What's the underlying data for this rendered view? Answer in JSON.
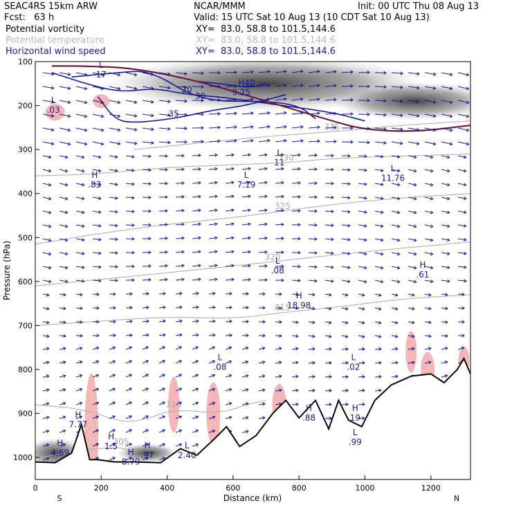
{
  "header": {
    "model": "SEAC4RS 15km ARW",
    "org": "NCAR/MMM",
    "init": "Init: 00 UTC Thu 08 Aug 13",
    "fcst": "Fcst:   63 h",
    "valid": "Valid: 15 UTC Sat 10 Aug 13 (10 CDT Sat 10 Aug 13)",
    "fields": [
      {
        "name": "Potential vorticity",
        "xy": "XY=  83.0, 58.8 to 101.5,144.6",
        "color": "#000000"
      },
      {
        "name": "Potential temperature",
        "xy": "XY=  83.0, 58.8 to 101.5,144.6",
        "color": "#b8b8b8"
      },
      {
        "name": "Horizontal wind speed",
        "xy": "XY=  83.0, 58.8 to 101.5,144.6",
        "color": "#1a1a8c"
      }
    ]
  },
  "chart_data": {
    "type": "cross-section",
    "title": "",
    "xlabel": "Distance (km)",
    "ylabel": "Pressure (hPa)",
    "xlim": [
      0,
      1320
    ],
    "ylim": [
      1050,
      100
    ],
    "x_ticks": [
      "0",
      "200",
      "400",
      "600",
      "800",
      "1000",
      "1200"
    ],
    "y_ticks": [
      "100",
      "200",
      "300",
      "400",
      "500",
      "600",
      "700",
      "800",
      "900",
      "1000"
    ],
    "endpoints": {
      "left": "S",
      "right": "N"
    },
    "colors": {
      "wind": "#1a1a8c",
      "theta": "#a8a8a8",
      "pv_line": "#6b1a3a",
      "pv_fill": "#f4b6b6",
      "terrain": "#000000"
    },
    "terrain": [
      [
        0,
        1010
      ],
      [
        60,
        1012
      ],
      [
        110,
        990
      ],
      [
        140,
        925
      ],
      [
        165,
        1005
      ],
      [
        190,
        1005
      ],
      [
        240,
        1010
      ],
      [
        300,
        1010
      ],
      [
        380,
        1012
      ],
      [
        440,
        980
      ],
      [
        490,
        995
      ],
      [
        540,
        960
      ],
      [
        580,
        930
      ],
      [
        620,
        975
      ],
      [
        670,
        950
      ],
      [
        720,
        900
      ],
      [
        760,
        870
      ],
      [
        800,
        910
      ],
      [
        850,
        870
      ],
      [
        890,
        935
      ],
      [
        920,
        870
      ],
      [
        950,
        915
      ],
      [
        990,
        930
      ],
      [
        1030,
        870
      ],
      [
        1080,
        835
      ],
      [
        1140,
        815
      ],
      [
        1200,
        810
      ],
      [
        1240,
        830
      ],
      [
        1280,
        800
      ],
      [
        1300,
        775
      ],
      [
        1320,
        810
      ]
    ],
    "theta_contours": [
      {
        "label": "305",
        "points": [
          [
            20,
            1000
          ],
          [
            120,
            985
          ],
          [
            260,
            975
          ],
          [
            300,
            990
          ]
        ]
      },
      {
        "label": "310",
        "points": [
          [
            0,
            880
          ],
          [
            150,
            890
          ],
          [
            260,
            920
          ],
          [
            330,
            915
          ],
          [
            420,
            890
          ],
          [
            560,
            900
          ],
          [
            640,
            880
          ],
          [
            700,
            870
          ]
        ]
      },
      {
        "label": "315",
        "points": [
          [
            0,
            700
          ],
          [
            200,
            690
          ],
          [
            400,
            680
          ],
          [
            600,
            685
          ],
          [
            750,
            670
          ],
          [
            900,
            660
          ],
          [
            1100,
            640
          ],
          [
            1320,
            630
          ]
        ]
      },
      {
        "label": "320",
        "points": [
          [
            0,
            610
          ],
          [
            200,
            595
          ],
          [
            400,
            580
          ],
          [
            600,
            565
          ],
          [
            720,
            555
          ],
          [
            900,
            540
          ],
          [
            1100,
            525
          ],
          [
            1320,
            510
          ]
        ]
      },
      {
        "label": "325",
        "points": [
          [
            0,
            515
          ],
          [
            200,
            490
          ],
          [
            400,
            470
          ],
          [
            600,
            455
          ],
          [
            750,
            440
          ],
          [
            900,
            425
          ],
          [
            1100,
            410
          ],
          [
            1320,
            400
          ]
        ]
      },
      {
        "label": "330",
        "points": [
          [
            0,
            360
          ],
          [
            200,
            355
          ],
          [
            400,
            340
          ],
          [
            600,
            335
          ],
          [
            760,
            330
          ],
          [
            900,
            320
          ],
          [
            1100,
            315
          ],
          [
            1320,
            310
          ]
        ]
      },
      {
        "label": "335",
        "points": [
          [
            300,
            300
          ],
          [
            500,
            285
          ],
          [
            700,
            270
          ],
          [
            900,
            260
          ],
          [
            1100,
            245
          ],
          [
            1320,
            235
          ]
        ]
      }
    ],
    "wind_speed_contours": [
      {
        "label": "20",
        "points": [
          [
            50,
            125
          ],
          [
            150,
            150
          ],
          [
            260,
            170
          ],
          [
            360,
            160
          ],
          [
            460,
            175
          ],
          [
            560,
            180
          ],
          [
            700,
            195
          ],
          [
            900,
            215
          ],
          [
            1000,
            235
          ]
        ]
      },
      {
        "label": "30",
        "points": [
          [
            110,
            135
          ],
          [
            250,
            125
          ],
          [
            350,
            120
          ],
          [
            500,
            190
          ],
          [
            700,
            190
          ],
          [
            800,
            200
          ],
          [
            850,
            230
          ]
        ]
      },
      {
        "label": "35",
        "points": [
          [
            190,
            180
          ],
          [
            240,
            230
          ],
          [
            290,
            240
          ],
          [
            420,
            230
          ],
          [
            540,
            210
          ],
          [
            640,
            200
          ],
          [
            760,
            175
          ]
        ]
      },
      {
        "label": "40",
        "points": [
          [
            490,
            145
          ],
          [
            560,
            150
          ],
          [
            650,
            160
          ],
          [
            700,
            150
          ]
        ]
      }
    ],
    "pv_contour": [
      [
        50,
        110
      ],
      [
        150,
        110
      ],
      [
        300,
        115
      ],
      [
        500,
        145
      ],
      [
        700,
        190
      ],
      [
        900,
        235
      ],
      [
        1000,
        255
      ],
      [
        1150,
        260
      ],
      [
        1320,
        245
      ]
    ],
    "extrema": [
      {
        "type": "L",
        "value": "17",
        "x": 200,
        "y": 125
      },
      {
        "type": "L",
        "value": ".03",
        "x": 55,
        "y": 205
      },
      {
        "type": "H",
        "value": "9.25",
        "x": 625,
        "y": 165
      },
      {
        "type": "H",
        "value": ".83",
        "x": 180,
        "y": 375
      },
      {
        "type": "L",
        "value": "11",
        "x": 740,
        "y": 325
      },
      {
        "type": "L",
        "value": "7.19",
        "x": 640,
        "y": 375
      },
      {
        "type": "L",
        "value": "11.76",
        "x": 1085,
        "y": 360
      },
      {
        "type": "L",
        "value": ".08",
        "x": 735,
        "y": 570
      },
      {
        "type": "H",
        "value": ".61",
        "x": 1175,
        "y": 580
      },
      {
        "type": "H",
        "value": "18.98",
        "x": 800,
        "y": 650
      },
      {
        "type": "L",
        "value": ".08",
        "x": 560,
        "y": 790
      },
      {
        "type": "L",
        "value": ".02",
        "x": 965,
        "y": 790
      },
      {
        "type": "H",
        "value": "7.77",
        "x": 130,
        "y": 920
      },
      {
        "type": "H",
        "value": "4.69",
        "x": 75,
        "y": 985
      },
      {
        "type": "H",
        "value": ".88",
        "x": 830,
        "y": 905
      },
      {
        "type": "H",
        "value": "19",
        "x": 970,
        "y": 905
      },
      {
        "type": "L",
        "value": ".99",
        "x": 970,
        "y": 960
      },
      {
        "type": "H",
        "value": "1.5",
        "x": 230,
        "y": 970
      },
      {
        "type": "H",
        "value": "8.79",
        "x": 290,
        "y": 1005
      },
      {
        "type": "L",
        "value": "2.40",
        "x": 460,
        "y": 990
      },
      {
        "type": "H",
        "value": ".97",
        "x": 340,
        "y": 990
      }
    ]
  }
}
